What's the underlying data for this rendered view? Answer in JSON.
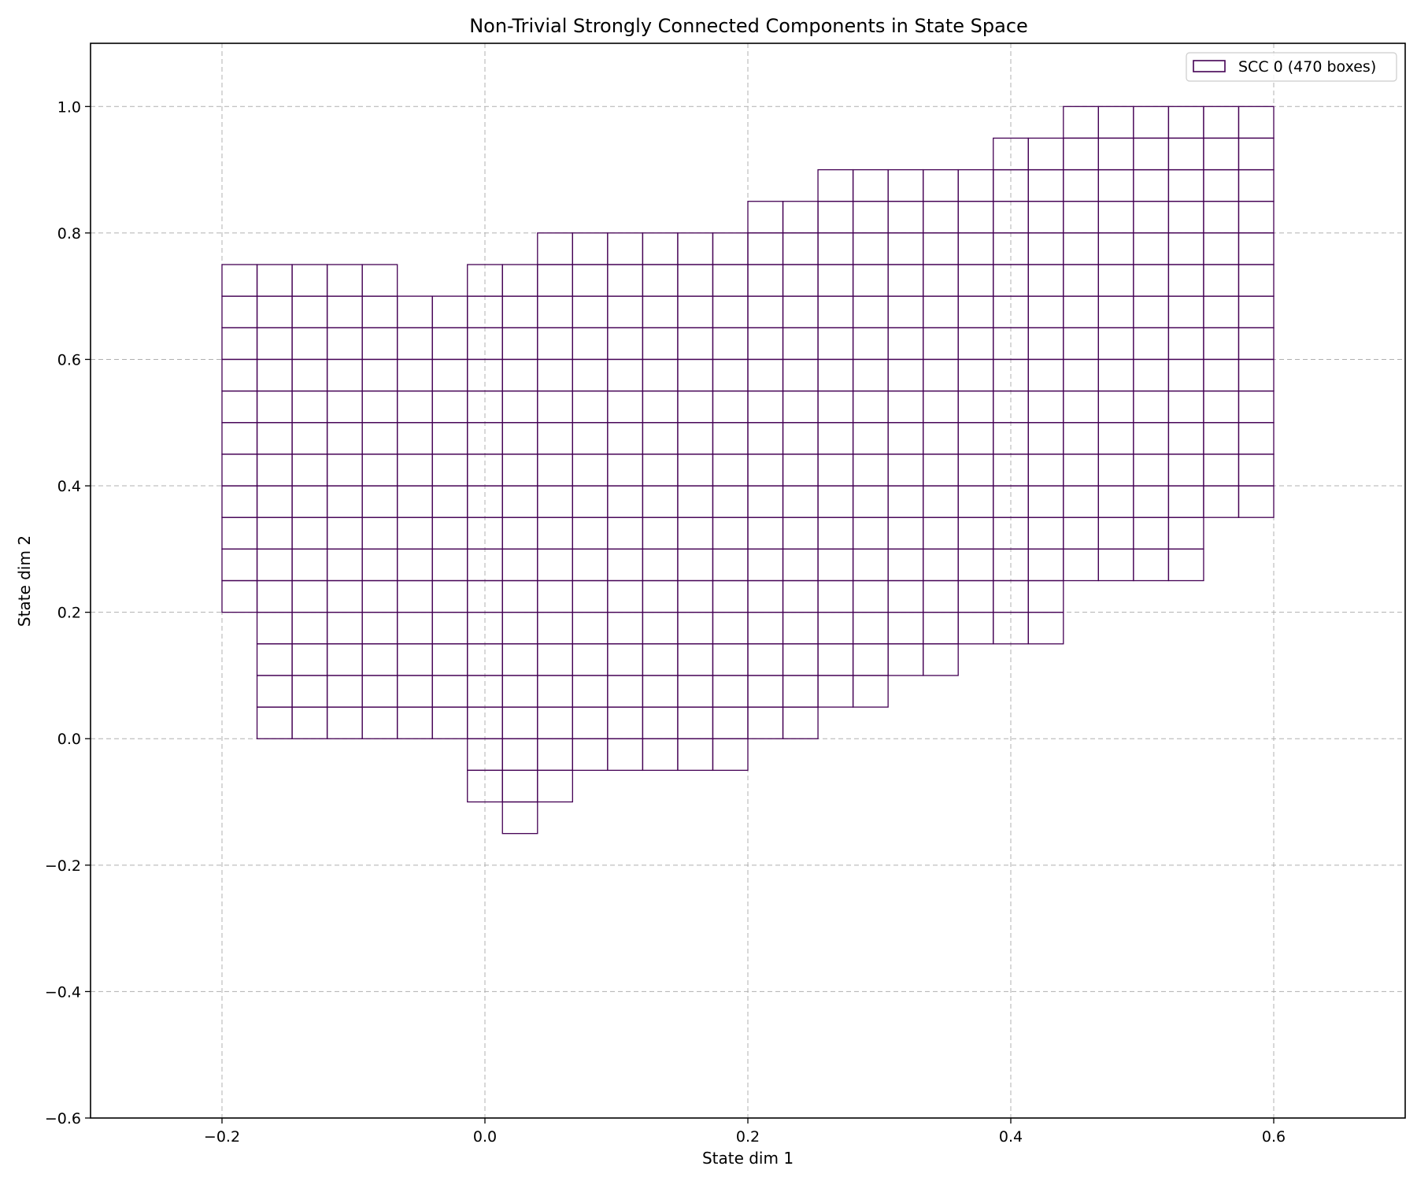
{
  "chart_data": {
    "type": "heatmap",
    "title": "Non-Trivial Strongly Connected Components in State Space",
    "xlabel": "State dim 1",
    "ylabel": "State dim 2",
    "xlim": [
      -0.3,
      0.7
    ],
    "ylim": [
      -0.6,
      1.1
    ],
    "xticks": [
      -0.2,
      0.0,
      0.2,
      0.4,
      0.6
    ],
    "yticks": [
      -0.6,
      -0.4,
      -0.2,
      0.0,
      0.2,
      0.4,
      0.6,
      0.8,
      1.0
    ],
    "xtick_labels": [
      "−0.2",
      "0.0",
      "0.2",
      "0.4",
      "0.6"
    ],
    "ytick_labels": [
      "−0.6",
      "−0.4",
      "−0.2",
      "0.0",
      "0.2",
      "0.4",
      "0.6",
      "0.8",
      "1.0"
    ],
    "grid": true,
    "legend_position": "top-right",
    "box_width": 0.02667,
    "box_height": 0.05,
    "series": [
      {
        "name": "SCC 0 (470 boxes)",
        "color": "#440154",
        "columns": [
          {
            "x0": -0.2,
            "y0": 0.2,
            "y1": 0.75
          },
          {
            "x0": -0.17333,
            "y0": 0.0,
            "y1": 0.75
          },
          {
            "x0": -0.14667,
            "y0": 0.0,
            "y1": 0.75
          },
          {
            "x0": -0.12,
            "y0": 0.0,
            "y1": 0.75
          },
          {
            "x0": -0.09333,
            "y0": 0.0,
            "y1": 0.75
          },
          {
            "x0": -0.06667,
            "y0": 0.0,
            "y1": 0.7
          },
          {
            "x0": -0.04,
            "y0": 0.0,
            "y1": 0.7
          },
          {
            "x0": -0.01333,
            "y0": -0.1,
            "y1": 0.75
          },
          {
            "x0": 0.01333,
            "y0": -0.15,
            "y1": 0.75
          },
          {
            "x0": 0.04,
            "y0": -0.1,
            "y1": 0.8
          },
          {
            "x0": 0.06667,
            "y0": -0.05,
            "y1": 0.8
          },
          {
            "x0": 0.09333,
            "y0": -0.05,
            "y1": 0.8
          },
          {
            "x0": 0.12,
            "y0": -0.05,
            "y1": 0.8
          },
          {
            "x0": 0.14667,
            "y0": -0.05,
            "y1": 0.8
          },
          {
            "x0": 0.17333,
            "y0": -0.05,
            "y1": 0.8
          },
          {
            "x0": 0.2,
            "y0": 0.0,
            "y1": 0.85
          },
          {
            "x0": 0.22667,
            "y0": 0.0,
            "y1": 0.85
          },
          {
            "x0": 0.25333,
            "y0": 0.05,
            "y1": 0.9
          },
          {
            "x0": 0.28,
            "y0": 0.05,
            "y1": 0.9
          },
          {
            "x0": 0.30667,
            "y0": 0.1,
            "y1": 0.9
          },
          {
            "x0": 0.33333,
            "y0": 0.1,
            "y1": 0.9
          },
          {
            "x0": 0.36,
            "y0": 0.15,
            "y1": 0.9
          },
          {
            "x0": 0.38667,
            "y0": 0.15,
            "y1": 0.95
          },
          {
            "x0": 0.41333,
            "y0": 0.15,
            "y1": 0.95
          },
          {
            "x0": 0.44,
            "y0": 0.25,
            "y1": 1.0
          },
          {
            "x0": 0.46667,
            "y0": 0.25,
            "y1": 1.0
          },
          {
            "x0": 0.49333,
            "y0": 0.25,
            "y1": 1.0
          },
          {
            "x0": 0.52,
            "y0": 0.25,
            "y1": 1.0
          },
          {
            "x0": 0.54667,
            "y0": 0.35,
            "y1": 1.0
          },
          {
            "x0": 0.57333,
            "y0": 0.35,
            "y1": 1.0
          }
        ]
      }
    ]
  }
}
